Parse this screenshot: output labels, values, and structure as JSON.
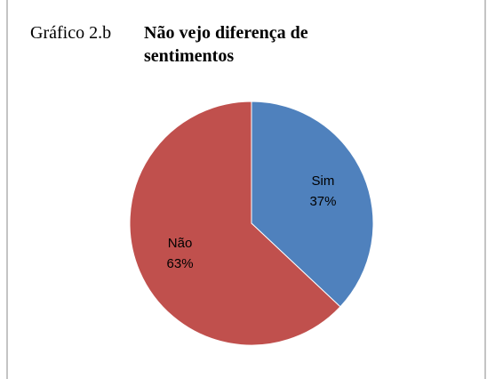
{
  "chart_data": {
    "type": "pie",
    "label": "Gráfico 2.b",
    "title": "Não vejo diferença de sentimentos",
    "categories": [
      "Sim",
      "Não"
    ],
    "values": [
      37,
      63
    ],
    "value_labels": [
      "37%",
      "63%"
    ],
    "colors": [
      "#4f81bd",
      "#c0504d"
    ]
  }
}
